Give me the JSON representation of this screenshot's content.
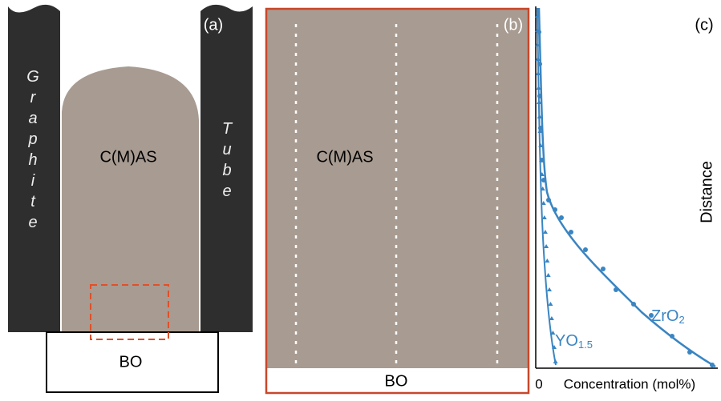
{
  "panel_a": {
    "label": "(a)",
    "sample": "C(M)AS",
    "base": "BO",
    "tube_left": "Graphite",
    "tube_right": "Tube"
  },
  "panel_b": {
    "label": "(b)",
    "sample": "C(M)AS",
    "base": "BO"
  },
  "panel_c": {
    "label": "(c)",
    "y_axis": "Distance",
    "x_axis": "Concentration (mol%)",
    "x_origin": "0",
    "curve_1": {
      "text": "ZrO",
      "sub": "2"
    },
    "curve_2": {
      "text": "YO",
      "sub": "1.5"
    }
  }
}
